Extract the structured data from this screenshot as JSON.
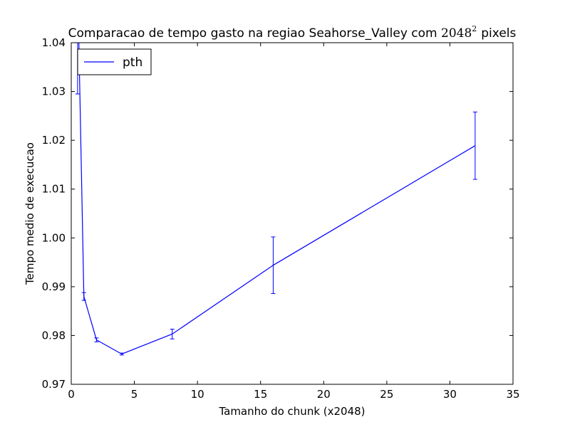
{
  "chart_data": {
    "type": "line",
    "title": "Comparacao de tempo gasto na regiao Seahorse_Valley com",
    "title_math_base": "2048",
    "title_math_exp": "2",
    "title_suffix": "pixels",
    "xlabel": "Tamanho do chunk (x2048)",
    "ylabel": "Tempo medio de execucao",
    "xlim": [
      0,
      35
    ],
    "ylim": [
      0.97,
      1.04
    ],
    "x_ticks": [
      0,
      5,
      10,
      15,
      20,
      25,
      30,
      35
    ],
    "x_tick_labels": [
      "0",
      "5",
      "10",
      "15",
      "20",
      "25",
      "30",
      "35"
    ],
    "y_ticks": [
      0.97,
      0.98,
      0.99,
      1.0,
      1.01,
      1.02,
      1.03,
      1.04
    ],
    "y_tick_labels": [
      "0.97",
      "0.98",
      "0.99",
      "1.00",
      "1.01",
      "1.02",
      "1.03",
      "1.04"
    ],
    "grid": false,
    "legend_position": "top-left",
    "series": [
      {
        "name": "pth",
        "color": "#0000ff",
        "x": [
          0.5,
          1,
          2,
          4,
          8,
          16,
          32
        ],
        "y": [
          1.0535,
          0.988,
          0.9791,
          0.9762,
          0.9803,
          0.9944,
          1.0189
        ],
        "err": [
          0.024,
          0.0008,
          0.0004,
          0.0002,
          0.001,
          0.0058,
          0.0069
        ]
      }
    ]
  }
}
